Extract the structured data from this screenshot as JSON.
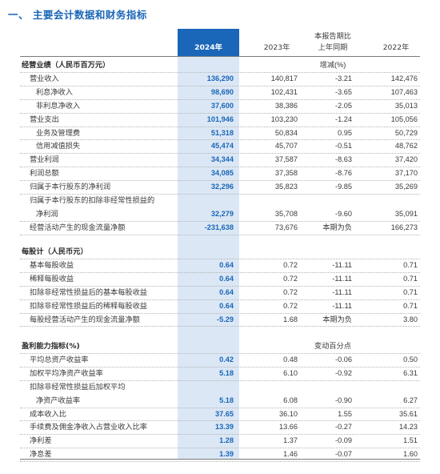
{
  "title": "一、 主要会计数据和财务指标",
  "header": {
    "col1": "2024年",
    "col2": "2023年",
    "col3_line1": "本报告期比",
    "col3_line2": "上年同期",
    "col4": "2022年"
  },
  "sections": [
    {
      "heading": "经营业绩（人民币百万元）",
      "heading_note": "增减(%)",
      "rows": [
        {
          "label": "营业收入",
          "v2024": "136,290",
          "v2023": "140,817",
          "change": "-3.21",
          "v2022": "142,476"
        },
        {
          "label": "利息净收入",
          "v2024": "98,690",
          "v2023": "102,431",
          "change": "-3.65",
          "v2022": "107,463"
        },
        {
          "label": "非利息净收入",
          "v2024": "37,600",
          "v2023": "38,386",
          "change": "-2.05",
          "v2022": "35,013"
        },
        {
          "label": "营业支出",
          "v2024": "101,946",
          "v2023": "103,230",
          "change": "-1.24",
          "v2022": "105,056"
        },
        {
          "label": "业务及管理费",
          "v2024": "51,318",
          "v2023": "50,834",
          "change": "0.95",
          "v2022": "50,729"
        },
        {
          "label": "信用减值损失",
          "v2024": "45,474",
          "v2023": "45,707",
          "change": "-0.51",
          "v2022": "48,762"
        },
        {
          "label": "营业利润",
          "v2024": "34,344",
          "v2023": "37,587",
          "change": "-8.63",
          "v2022": "37,420"
        },
        {
          "label": "利润总额",
          "v2024": "34,085",
          "v2023": "37,358",
          "change": "-8.76",
          "v2022": "37,170"
        },
        {
          "label": "归属于本行股东的净利润",
          "v2024": "32,296",
          "v2023": "35,823",
          "change": "-9.85",
          "v2022": "35,269"
        },
        {
          "label": "归属于本行股东的扣除非经常性损益的",
          "v2024": "",
          "v2023": "",
          "change": "",
          "v2022": ""
        },
        {
          "label": "净利润",
          "v2024": "32,279",
          "v2023": "35,708",
          "change": "-9.60",
          "v2022": "35,091"
        },
        {
          "label": "经营活动产生的现金流量净额",
          "v2024": "-231,638",
          "v2023": "73,676",
          "change": "本期为负",
          "v2022": "166,273"
        }
      ]
    },
    {
      "heading": "每股计（人民币元）",
      "heading_note": "",
      "rows": [
        {
          "label": "基本每股收益",
          "v2024": "0.64",
          "v2023": "0.72",
          "change": "-11.11",
          "v2022": "0.71"
        },
        {
          "label": "稀释每股收益",
          "v2024": "0.64",
          "v2023": "0.72",
          "change": "-11.11",
          "v2022": "0.71"
        },
        {
          "label": "扣除非经常性损益后的基本每股收益",
          "v2024": "0.64",
          "v2023": "0.72",
          "change": "-11.11",
          "v2022": "0.71"
        },
        {
          "label": "扣除非经常性损益后的稀释每股收益",
          "v2024": "0.64",
          "v2023": "0.72",
          "change": "-11.11",
          "v2022": "0.71"
        },
        {
          "label": "每股经营活动产生的现金流量净额",
          "v2024": "-5.29",
          "v2023": "1.68",
          "change": "本期为负",
          "v2022": "3.80"
        }
      ]
    },
    {
      "heading": "盈利能力指标(%)",
      "heading_note": "变动百分点",
      "rows": [
        {
          "label": "平均总资产收益率",
          "v2024": "0.42",
          "v2023": "0.48",
          "change": "-0.06",
          "v2022": "0.50"
        },
        {
          "label": "加权平均净资产收益率",
          "v2024": "5.18",
          "v2023": "6.10",
          "change": "-0.92",
          "v2022": "6.31"
        },
        {
          "label": "扣除非经常性损益后加权平均",
          "v2024": "",
          "v2023": "",
          "change": "",
          "v2022": ""
        },
        {
          "label": "净资产收益率",
          "v2024": "5.18",
          "v2023": "6.08",
          "change": "-0.90",
          "v2022": "6.27"
        },
        {
          "label": "成本收入比",
          "v2024": "37.65",
          "v2023": "36.10",
          "change": "1.55",
          "v2022": "35.61"
        },
        {
          "label": "手续费及佣金净收入占营业收入比率",
          "v2024": "13.39",
          "v2023": "13.66",
          "change": "-0.27",
          "v2022": "14.23"
        },
        {
          "label": "净利差",
          "v2024": "1.28",
          "v2023": "1.37",
          "change": "-0.09",
          "v2022": "1.51"
        },
        {
          "label": "净息差",
          "v2024": "1.39",
          "v2023": "1.46",
          "change": "-0.07",
          "v2022": "1.60"
        }
      ]
    }
  ],
  "colors": {
    "accent": "#1a66b8",
    "highlight": "#dbe7f5"
  }
}
